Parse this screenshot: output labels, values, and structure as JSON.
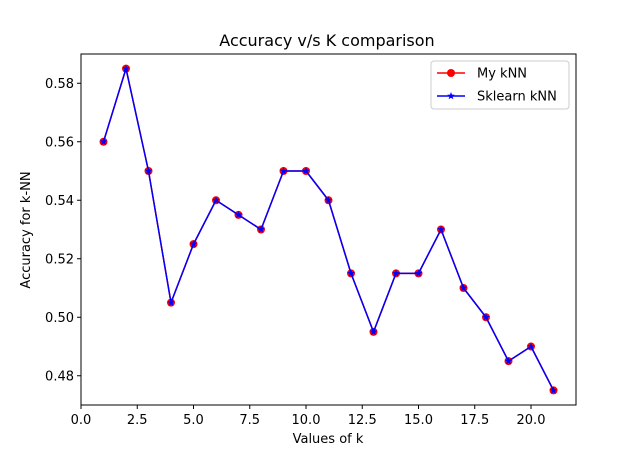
{
  "chart_data": {
    "type": "line",
    "title": "Accuracy v/s K comparison",
    "xlabel": "Values of k",
    "ylabel": "Accuracy for k-NN",
    "xlim": [
      0.0,
      22.0
    ],
    "ylim": [
      0.47,
      0.59
    ],
    "x_ticks": [
      0.0,
      2.5,
      5.0,
      7.5,
      10.0,
      12.5,
      15.0,
      17.5,
      20.0
    ],
    "x_tick_labels": [
      "0.0",
      "2.5",
      "5.0",
      "7.5",
      "10.0",
      "12.5",
      "15.0",
      "17.5",
      "20.0"
    ],
    "y_ticks": [
      0.48,
      0.5,
      0.52,
      0.54,
      0.56,
      0.58
    ],
    "y_tick_labels": [
      "0.48",
      "0.50",
      "0.52",
      "0.54",
      "0.56",
      "0.58"
    ],
    "grid": false,
    "legend_position": "top-right",
    "x": [
      1,
      2,
      3,
      4,
      5,
      6,
      7,
      8,
      9,
      10,
      11,
      12,
      13,
      14,
      15,
      16,
      17,
      18,
      19,
      20,
      21
    ],
    "series": [
      {
        "name": "My kNN",
        "color": "#ff0000",
        "marker": "circle",
        "values": [
          0.56,
          0.585,
          0.55,
          0.505,
          0.525,
          0.54,
          0.535,
          0.53,
          0.55,
          0.55,
          0.54,
          0.515,
          0.495,
          0.515,
          0.515,
          0.53,
          0.51,
          0.5,
          0.485,
          0.49,
          0.475
        ]
      },
      {
        "name": "Sklearn kNN",
        "color": "#0000ff",
        "marker": "star",
        "values": [
          0.56,
          0.585,
          0.55,
          0.505,
          0.525,
          0.54,
          0.535,
          0.53,
          0.55,
          0.55,
          0.54,
          0.515,
          0.495,
          0.515,
          0.515,
          0.53,
          0.51,
          0.5,
          0.485,
          0.49,
          0.475
        ]
      }
    ]
  }
}
